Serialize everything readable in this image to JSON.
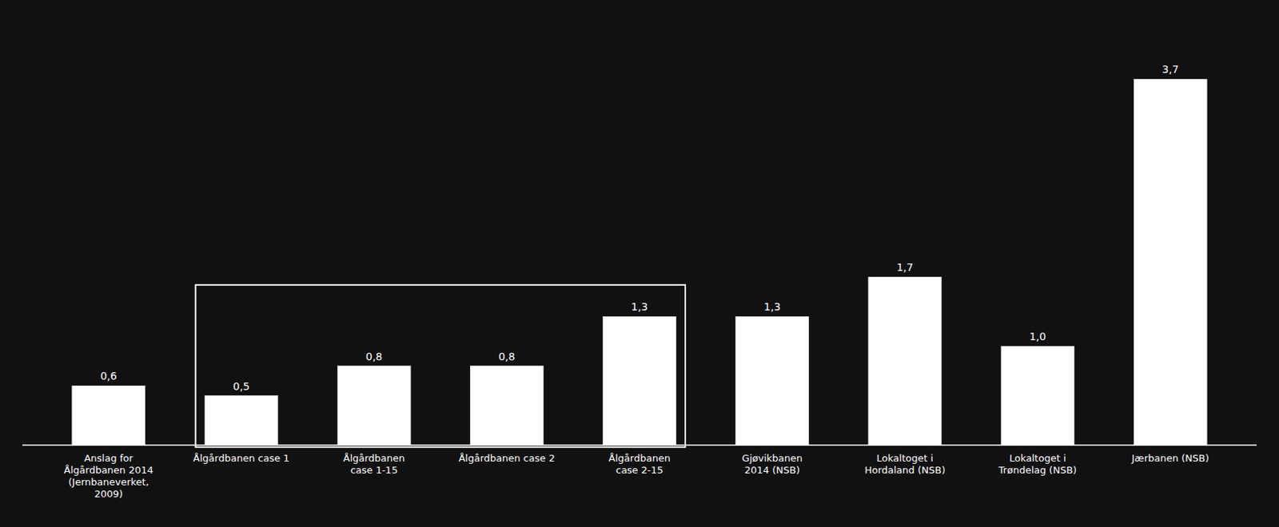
{
  "chart_data": {
    "type": "bar",
    "categories": [
      "Anslag for\nÅlgårdbanen 2014\n(Jernbaneverket,\n2009)",
      "Ålgårdbanen case 1",
      "Ålgårdbanen\ncase 1-15",
      "Ålgårdbanen case 2",
      "Ålgårdbanen\ncase 2-15",
      "Gjøvikbanen\n2014 (NSB)",
      "Lokaltoget i\nHordaland (NSB)",
      "Lokaltoget i\nTrøndelag (NSB)",
      "Jærbanen (NSB)"
    ],
    "values": [
      0.6,
      0.5,
      0.8,
      0.8,
      1.3,
      1.3,
      1.7,
      1.0,
      3.7
    ],
    "value_labels": [
      "0,6",
      "0,5",
      "0,8",
      "0,8",
      "1,3",
      "1,3",
      "1,7",
      "1,0",
      "3,7"
    ],
    "data_labels": true,
    "color": "#ffffff",
    "ylim": [
      0,
      4.2
    ],
    "tick_labels": "x",
    "grid": false,
    "annotations": [
      {
        "type": "box",
        "start": "Ålgårdbanen case 1",
        "end": "Ålgårdbanen\ncase 2-15",
        "ylim": [
          -0.02,
          1.62
        ]
      }
    ]
  }
}
